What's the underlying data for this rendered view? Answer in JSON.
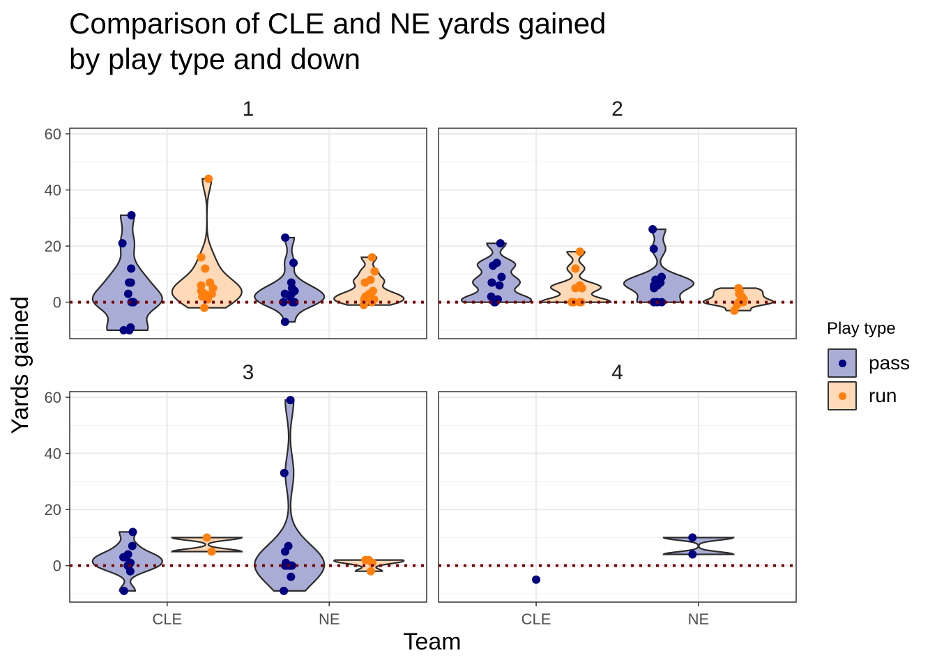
{
  "title_line1": "Comparison of CLE and NE yards gained",
  "title_line2": "by play type and down",
  "xlabel": "Team",
  "ylabel": "Yards gained",
  "legend": {
    "title": "Play type",
    "items": [
      {
        "label": "pass",
        "point_color": "#000080",
        "fill": "#a9add6"
      },
      {
        "label": "run",
        "point_color": "#ff7f0e",
        "fill": "#ffd9b8"
      }
    ]
  },
  "colors": {
    "pass_point": "#000080",
    "run_point": "#ff7f0e",
    "pass_fill": "#a9add6",
    "run_fill": "#ffd9b8",
    "reference_line": "#7a0000",
    "panel_border": "#333333",
    "grid_major": "#ebebeb",
    "grid_minor": "#f3f3f3",
    "violin_stroke": "#2b2b2b"
  },
  "chart_data": {
    "type": "violin",
    "facet_variable": "down",
    "categories": [
      "CLE",
      "NE"
    ],
    "ylim": [
      -13,
      62
    ],
    "y_ticks": [
      0,
      20,
      40,
      60
    ],
    "grid": true,
    "reference_line": {
      "y": 0,
      "style": "dotted"
    },
    "legend_position": "right",
    "panels": [
      {
        "label": "1",
        "groups": [
          {
            "team": "CLE",
            "play_type": "pass",
            "yards": [
              31,
              21,
              12,
              7,
              7,
              3,
              0,
              0,
              0,
              0,
              -9,
              -10,
              -10
            ]
          },
          {
            "team": "CLE",
            "play_type": "run",
            "yards": [
              44,
              16,
              12,
              7,
              6,
              5,
              4,
              3,
              3,
              2,
              1,
              -2
            ]
          },
          {
            "team": "NE",
            "play_type": "pass",
            "yards": [
              23,
              14,
              7,
              5,
              4,
              3,
              3,
              2,
              0,
              0,
              0,
              0,
              -7
            ]
          },
          {
            "team": "NE",
            "play_type": "run",
            "yards": [
              16,
              11,
              8,
              7,
              4,
              3,
              2,
              1,
              1,
              0,
              -1
            ]
          }
        ]
      },
      {
        "label": "2",
        "groups": [
          {
            "team": "CLE",
            "play_type": "pass",
            "yards": [
              21,
              14,
              13,
              9,
              7,
              6,
              2,
              1,
              0,
              0
            ]
          },
          {
            "team": "CLE",
            "play_type": "run",
            "yards": [
              18,
              12,
              6,
              5,
              5,
              0,
              0,
              0,
              0
            ]
          },
          {
            "team": "NE",
            "play_type": "pass",
            "yards": [
              26,
              19,
              9,
              8,
              7,
              6,
              6,
              5,
              0,
              0,
              0
            ]
          },
          {
            "team": "NE",
            "play_type": "run",
            "yards": [
              5,
              4,
              3,
              2,
              1,
              0,
              0,
              -1,
              -3
            ]
          }
        ]
      },
      {
        "label": "3",
        "groups": [
          {
            "team": "CLE",
            "play_type": "pass",
            "yards": [
              12,
              7,
              4,
              3,
              3,
              1,
              0,
              0,
              -2,
              -9
            ]
          },
          {
            "team": "CLE",
            "play_type": "run",
            "yards": [
              10,
              5
            ]
          },
          {
            "team": "NE",
            "play_type": "pass",
            "yards": [
              59,
              33,
              7,
              5,
              1,
              0,
              0,
              0,
              0,
              0,
              -4,
              -9
            ]
          },
          {
            "team": "NE",
            "play_type": "run",
            "yards": [
              2,
              2,
              1,
              -2
            ]
          }
        ]
      },
      {
        "label": "4",
        "groups": [
          {
            "team": "CLE",
            "play_type": "pass",
            "yards": [
              -5
            ]
          },
          {
            "team": "NE",
            "play_type": "pass",
            "yards": [
              10,
              4
            ]
          }
        ]
      }
    ]
  }
}
